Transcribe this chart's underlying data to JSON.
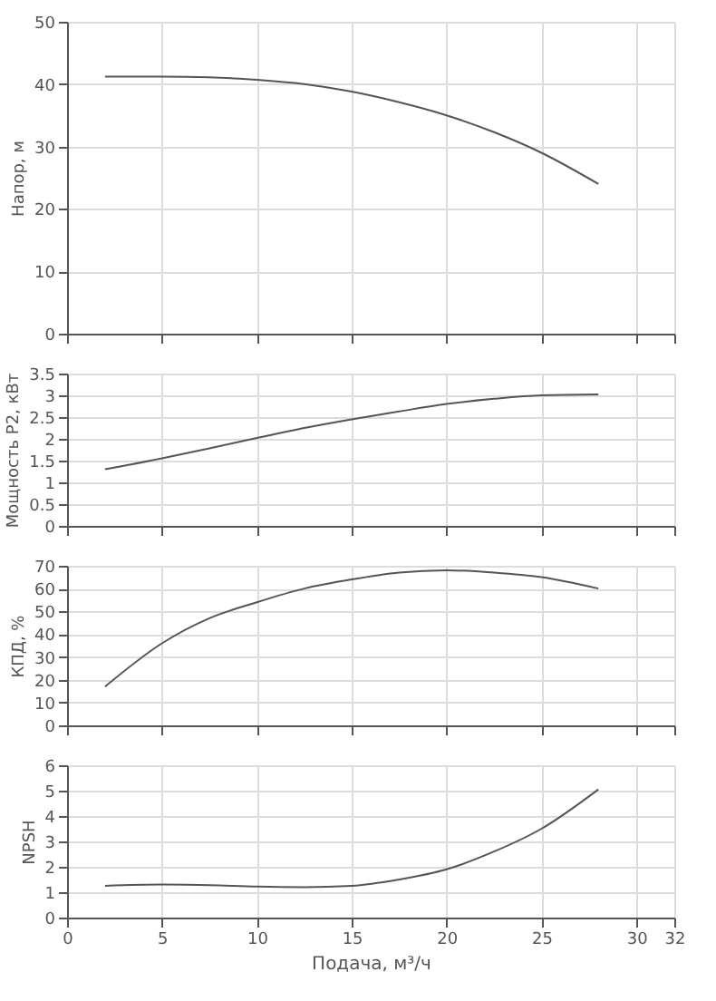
{
  "chart_data": [
    {
      "type": "line",
      "x": [
        2,
        5,
        7.5,
        10,
        12.5,
        15,
        17.5,
        20,
        22.5,
        25,
        28
      ],
      "series": [
        {
          "color": "#555555",
          "values": [
            41.2,
            41.2,
            41.1,
            40.7,
            40,
            38.8,
            37.1,
            35,
            32.3,
            29,
            24
          ]
        }
      ],
      "xlim": [
        0,
        32
      ],
      "xticks": [
        0,
        5,
        10,
        15,
        20,
        25,
        30,
        32
      ],
      "ylim": [
        0,
        50
      ],
      "yticks": [
        0,
        10,
        20,
        30,
        40,
        50
      ],
      "ylabel": "Напор, м",
      "grid": true,
      "tick_labels": "y"
    },
    {
      "type": "line",
      "x": [
        2,
        5,
        7.5,
        10,
        12.5,
        15,
        17.5,
        20,
        22.5,
        25,
        28
      ],
      "series": [
        {
          "color": "#555555",
          "values": [
            1.3,
            1.55,
            1.78,
            2.02,
            2.25,
            2.45,
            2.63,
            2.8,
            2.92,
            3.0,
            3.02
          ]
        }
      ],
      "xlim": [
        0,
        32
      ],
      "xticks": [
        0,
        5,
        10,
        15,
        20,
        25,
        30,
        32
      ],
      "ylim": [
        0,
        3.5
      ],
      "yticks": [
        0,
        0.5,
        1,
        1.5,
        2,
        2.5,
        3,
        3.5
      ],
      "ylabel": "Мощность P2, кВт",
      "grid": true,
      "tick_labels": "y"
    },
    {
      "type": "line",
      "x": [
        2,
        5,
        7.5,
        10,
        12.5,
        15,
        17.5,
        20,
        22.5,
        25,
        28
      ],
      "series": [
        {
          "color": "#555555",
          "values": [
            17,
            36,
            47,
            54,
            60,
            64,
            67,
            68,
            67,
            65,
            60
          ]
        }
      ],
      "xlim": [
        0,
        32
      ],
      "xticks": [
        0,
        5,
        10,
        15,
        20,
        25,
        30,
        32
      ],
      "ylim": [
        0,
        70
      ],
      "yticks": [
        0,
        10,
        20,
        30,
        40,
        50,
        60,
        70
      ],
      "ylabel": "КПД, %",
      "grid": true,
      "tick_labels": "y"
    },
    {
      "type": "line",
      "x": [
        2,
        5,
        7.5,
        10,
        12.5,
        15,
        17.5,
        20,
        22.5,
        25,
        28
      ],
      "series": [
        {
          "color": "#555555",
          "values": [
            1.25,
            1.3,
            1.28,
            1.22,
            1.2,
            1.25,
            1.5,
            1.9,
            2.6,
            3.5,
            5.05
          ]
        }
      ],
      "xlim": [
        0,
        32
      ],
      "xticks": [
        0,
        5,
        10,
        15,
        20,
        25,
        30,
        32
      ],
      "ylim": [
        0,
        6
      ],
      "yticks": [
        0,
        1,
        2,
        3,
        4,
        5,
        6
      ],
      "ylabel": "NPSH",
      "xlabel": "Подача, м³/ч",
      "grid": true
    }
  ]
}
